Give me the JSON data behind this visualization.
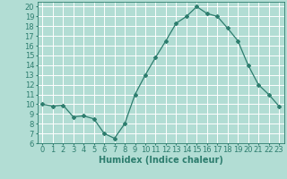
{
  "x": [
    0,
    1,
    2,
    3,
    4,
    5,
    6,
    7,
    8,
    9,
    10,
    11,
    12,
    13,
    14,
    15,
    16,
    17,
    18,
    19,
    20,
    21,
    22,
    23
  ],
  "y": [
    10,
    9.8,
    9.9,
    8.7,
    8.8,
    8.5,
    7.0,
    6.5,
    8.0,
    11.0,
    13.0,
    14.8,
    16.5,
    18.3,
    19.0,
    20.0,
    19.3,
    19.0,
    17.8,
    16.5,
    14.0,
    12.0,
    11.0,
    9.8
  ],
  "line_color": "#2d7d6e",
  "marker": "D",
  "marker_size": 2,
  "bg_color": "#b2ddd4",
  "grid_color": "#ffffff",
  "xlabel": "Humidex (Indice chaleur)",
  "xlim": [
    -0.5,
    23.5
  ],
  "ylim": [
    6,
    20.5
  ],
  "xticks": [
    0,
    1,
    2,
    3,
    4,
    5,
    6,
    7,
    8,
    9,
    10,
    11,
    12,
    13,
    14,
    15,
    16,
    17,
    18,
    19,
    20,
    21,
    22,
    23
  ],
  "yticks": [
    6,
    7,
    8,
    9,
    10,
    11,
    12,
    13,
    14,
    15,
    16,
    17,
    18,
    19,
    20
  ],
  "xlabel_fontsize": 7,
  "tick_fontsize": 6
}
